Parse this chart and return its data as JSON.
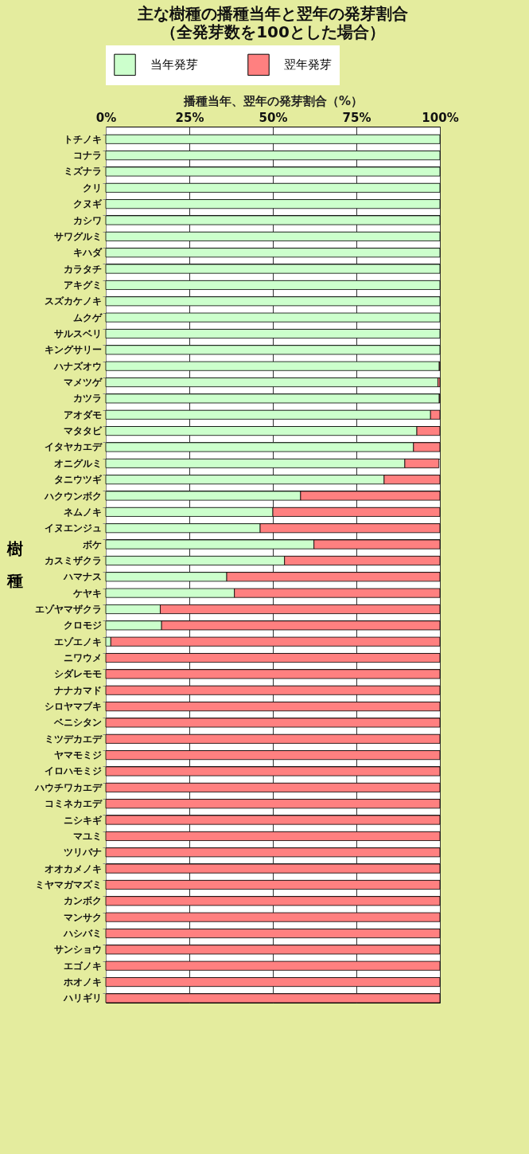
{
  "chart_data": {
    "type": "bar",
    "orientation": "horizontal",
    "stacked": true,
    "title": "主な樹種の播種当年と翌年の発芽割合",
    "subtitle": "（全発芽数を100とした場合）",
    "xlabel": "播種当年、翌年の発芽割合（%）",
    "ylabel": "樹種",
    "categories": [
      "トチノキ",
      "コナラ",
      "ミズナラ",
      "クリ",
      "クヌギ",
      "カシワ",
      "サワグルミ",
      "キハダ",
      "カラタチ",
      "アキグミ",
      "スズカケノキ",
      "ムクゲ",
      "サルスベリ",
      "キングサリー",
      "ハナズオウ",
      "マメツゲ",
      "カツラ",
      "アオダモ",
      "マタタビ",
      "イタヤカエデ",
      "オニグルミ",
      "タニウツギ",
      "ハクウンボク",
      "ネムノキ",
      "イヌエンジュ",
      "ボケ",
      "カスミザクラ",
      "ハマナス",
      "ケヤキ",
      "エゾヤマザクラ",
      "クロモジ",
      "エゾエノキ",
      "ニワウメ",
      "シダレモモ",
      "ナナカマド",
      "シロヤマブキ",
      "ベニシタン",
      "ミツデカエデ",
      "ヤマモミジ",
      "イロハモミジ",
      "ハウチワカエデ",
      "コミネカエデ",
      "ニシキギ",
      "マユミ",
      "ツリバナ",
      "オオカメノキ",
      "ミヤマガマズミ",
      "カンボク",
      "マンサク",
      "ハシバミ",
      "サンショウ",
      "エゴノキ",
      "ホオノキ",
      "ハリギリ"
    ],
    "series": [
      {
        "name": "当年発芽",
        "color": "#ccffcc",
        "values": [
          100,
          100,
          100,
          100,
          100,
          100,
          100,
          100,
          100,
          100,
          100,
          100,
          100,
          100,
          99.8,
          99.4,
          99.8,
          97.2,
          93.1,
          92.1,
          89.5,
          83.3,
          58.3,
          50,
          46.2,
          62.3,
          53.5,
          36.2,
          38.5,
          16.3,
          16.7,
          1.5,
          0,
          0,
          0,
          0,
          0,
          0,
          0,
          0,
          0,
          0,
          0,
          0,
          0,
          0,
          0,
          0,
          0,
          0,
          0,
          0,
          0,
          0
        ]
      },
      {
        "name": "翌年発芽",
        "color": "#ff8080",
        "values": [
          0,
          0,
          0,
          0,
          0,
          0,
          0,
          0,
          0,
          0,
          0,
          0,
          0,
          0,
          0.2,
          0.6,
          0.2,
          2.8,
          6.9,
          7.9,
          10.2,
          16.7,
          41.7,
          50,
          53.8,
          37.7,
          46.5,
          63.8,
          61.5,
          83.7,
          83.3,
          98.5,
          100,
          100,
          100,
          100,
          100,
          100,
          100,
          100,
          100,
          100,
          100,
          100,
          100,
          100,
          100,
          100,
          100,
          100,
          100,
          100,
          100,
          100
        ]
      }
    ],
    "xlim": [
      0,
      100
    ],
    "xticks": [
      {
        "value": 0,
        "label": "0%"
      },
      {
        "value": 25,
        "label": "25%"
      },
      {
        "value": 50,
        "label": "50%"
      },
      {
        "value": 75,
        "label": "75%"
      },
      {
        "value": 100,
        "label": "100%"
      }
    ],
    "grid": true,
    "legend": "top"
  }
}
